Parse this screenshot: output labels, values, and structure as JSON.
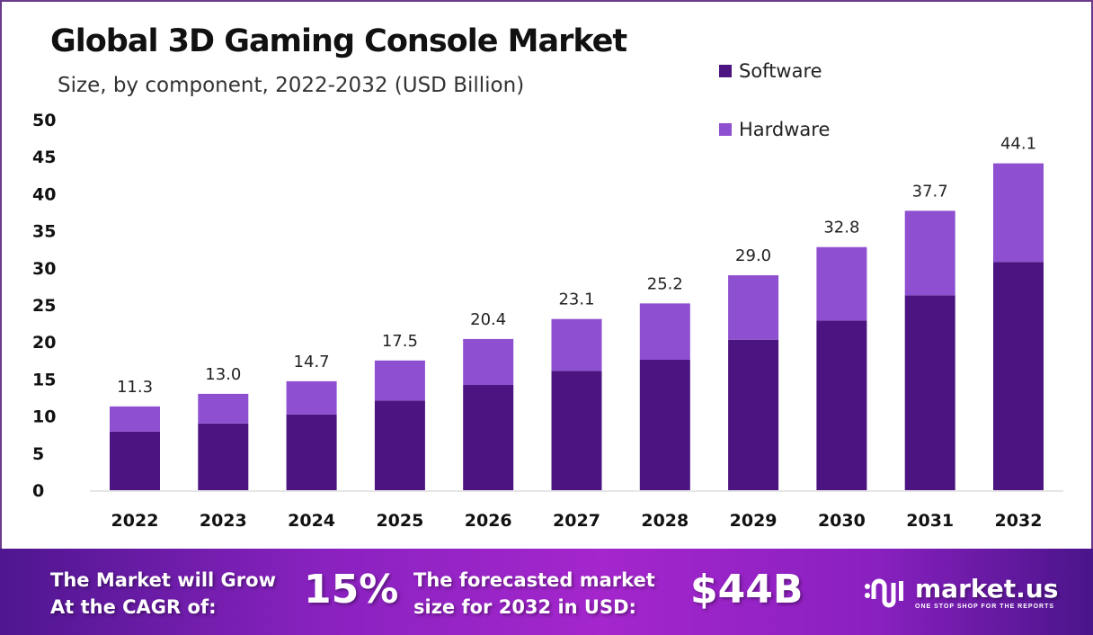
{
  "chart_data": {
    "type": "bar",
    "stacked": true,
    "title": "Global 3D Gaming Console Market",
    "subtitle": "Size, by component, 2022-2032 (USD Billion)",
    "categories": [
      "2022",
      "2023",
      "2024",
      "2025",
      "2026",
      "2027",
      "2028",
      "2029",
      "2030",
      "2031",
      "2032"
    ],
    "series": [
      {
        "name": "Software",
        "color": "#4b1480",
        "values": [
          7.9,
          9.0,
          10.2,
          12.1,
          14.2,
          16.1,
          17.6,
          20.3,
          22.9,
          26.3,
          30.8
        ]
      },
      {
        "name": "Hardware",
        "color": "#8e4fd0",
        "values": [
          3.4,
          4.0,
          4.5,
          5.4,
          6.2,
          7.0,
          7.6,
          8.7,
          9.9,
          11.4,
          13.3
        ]
      }
    ],
    "totals": [
      "11.3",
      "13.0",
      "14.7",
      "17.5",
      "20.4",
      "23.1",
      "25.2",
      "29.0",
      "32.8",
      "37.7",
      "44.1"
    ],
    "ylim": [
      0,
      50
    ],
    "yticks": [
      0,
      5,
      10,
      15,
      20,
      25,
      30,
      35,
      40,
      45,
      50
    ],
    "grid": false,
    "legend_position": "top-right"
  },
  "footer": {
    "cagr_text_1": "The Market will Grow",
    "cagr_text_2": "At the CAGR of:",
    "cagr_value": "15%",
    "forecast_text_1": "The forecasted market",
    "forecast_text_2": "size for 2032 in USD:",
    "forecast_value": "$44B",
    "logo_name": "market.us",
    "logo_tagline": "ONE STOP SHOP FOR THE REPORTS"
  }
}
